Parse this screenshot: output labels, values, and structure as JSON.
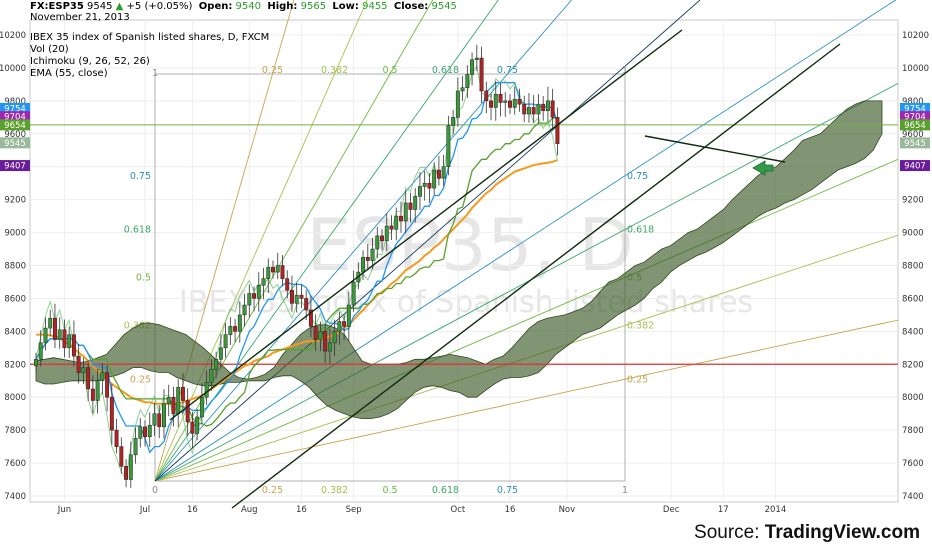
{
  "header": {
    "symbol": "FX:ESP35",
    "last": "9545",
    "change": "+5 (+0.05%)",
    "open_label": "Open:",
    "open": "9540",
    "high_label": "High:",
    "high": "9565",
    "low_label": "Low:",
    "low": "9455",
    "close_label": "Close:",
    "close": "9545",
    "date": "November 21, 2013"
  },
  "legend": {
    "title": "IBEX 35 index of Spanish listed shares, D, FXCM",
    "items": [
      "Vol (20)",
      "Ichimoku (9, 26, 52, 26)",
      "EMA (55, close)"
    ]
  },
  "watermark": {
    "big": "ESP35, D",
    "sub": "IBEX 35 index of Spanish listed shares"
  },
  "source": {
    "prefix": "Source: ",
    "brand": "TradingView.com"
  },
  "colors": {
    "up": "#3a9a3a",
    "down": "#b22222",
    "tenkan": "#2196f3",
    "kijun": "#5aa02c",
    "ema": "#f59a1c",
    "cloud": "#3d5a2a",
    "support": "#e03030",
    "trend": "#0f2a0f"
  },
  "chart_data": {
    "type": "candlestick",
    "ylim": [
      7400,
      10300
    ],
    "y_ticks": [
      7400,
      7600,
      7800,
      8000,
      8200,
      8400,
      8600,
      8800,
      9000,
      9200,
      9400,
      9600,
      9800,
      10000,
      10200
    ],
    "x_labels": [
      {
        "label": "Jun",
        "bar": 6
      },
      {
        "label": "Jul",
        "bar": 23
      },
      {
        "label": "16",
        "bar": 33
      },
      {
        "label": "Aug",
        "bar": 45
      },
      {
        "label": "16",
        "bar": 56
      },
      {
        "label": "Sep",
        "bar": 67
      },
      {
        "label": "Oct",
        "bar": 89
      },
      {
        "label": "16",
        "bar": 100
      },
      {
        "label": "Nov",
        "bar": 112
      },
      {
        "label": "Dec",
        "bar": 134
      },
      {
        "label": "17",
        "bar": 145
      },
      {
        "label": "2014",
        "bar": 156
      }
    ],
    "price_labels": [
      {
        "value": "9754",
        "price": 9754,
        "color": "#2196f3"
      },
      {
        "value": "9704",
        "price": 9704,
        "color": "#9c27b0"
      },
      {
        "value": "9654",
        "price": 9654,
        "color": "#5aa02c"
      },
      {
        "value": "9545",
        "price": 9545,
        "color": "#9ab89a"
      },
      {
        "value": "9407",
        "price": 9407,
        "color": "#6a1b9a"
      }
    ],
    "support_level": 8200,
    "fib_levels": [
      "0",
      "0.25",
      "0.382",
      "0.5",
      "0.618",
      "0.75",
      "1"
    ],
    "closes": [
      8230,
      8330,
      8420,
      8480,
      8350,
      8410,
      8300,
      8380,
      8250,
      8150,
      8180,
      8050,
      7980,
      8100,
      8150,
      8000,
      7800,
      7700,
      7580,
      7500,
      7650,
      7750,
      7820,
      7760,
      7830,
      7900,
      7820,
      7960,
      8000,
      7900,
      8060,
      7980,
      7850,
      7780,
      7880,
      8000,
      8090,
      8170,
      8230,
      8300,
      8380,
      8430,
      8400,
      8500,
      8560,
      8630,
      8600,
      8680,
      8720,
      8790,
      8760,
      8800,
      8720,
      8650,
      8570,
      8620,
      8600,
      8530,
      8430,
      8350,
      8400,
      8280,
      8330,
      8400,
      8460,
      8430,
      8560,
      8700,
      8760,
      8850,
      8830,
      8900,
      8980,
      8950,
      9040,
      9020,
      9100,
      9070,
      9180,
      9140,
      9220,
      9280,
      9300,
      9270,
      9380,
      9330,
      9400,
      9650,
      9700,
      9860,
      9880,
      9960,
      10050,
      10060,
      9860,
      9800,
      9760,
      9840,
      9790,
      9800,
      9760,
      9810,
      9780,
      9720,
      9760,
      9720,
      9780,
      9740,
      9800,
      9700,
      9540
    ],
    "ema55": [
      8380,
      8380,
      8380,
      8375,
      8370,
      8360,
      8340,
      8320,
      8300,
      8270,
      8250,
      8220,
      8190,
      8160,
      8140,
      8110,
      8080,
      8060,
      8040,
      8020,
      8000,
      7990,
      7980,
      7970,
      7970,
      7960,
      7960,
      7960,
      7960,
      7960,
      7960,
      7970,
      7980,
      7990,
      8000,
      8010,
      8030,
      8050,
      8070,
      8090,
      8110,
      8130,
      8150,
      8170,
      8190,
      8200,
      8220,
      8230,
      8240,
      8250,
      8270,
      8280,
      8290,
      8300,
      8310,
      8320,
      8330,
      8340,
      8340,
      8340,
      8350,
      8360,
      8370,
      8380,
      8400,
      8420,
      8440,
      8470,
      8500,
      8530,
      8560,
      8590,
      8620,
      8640,
      8660,
      8690,
      8710,
      8740,
      8770,
      8790,
      8810,
      8830,
      8860,
      8880,
      8910,
      8930,
      8960,
      8990,
      9020,
      9050,
      9080,
      9110,
      9150,
      9180,
      9210,
      9240,
      9260,
      9290,
      9310,
      9330,
      9350,
      9370,
      9380,
      9390,
      9400,
      9410,
      9415,
      9420,
      9425,
      9430,
      9440
    ],
    "cloud_upper": [
      8220,
      8230,
      8240,
      8230,
      8220,
      8210,
      8220,
      8240,
      8260,
      8320,
      8380,
      8420,
      8450,
      8450,
      8440,
      8420,
      8400,
      8380,
      8340,
      8300,
      8250,
      8200,
      8150,
      8120,
      8110,
      8120,
      8140,
      8180,
      8260,
      8320,
      8380,
      8420,
      8440,
      8440,
      8420,
      8380,
      8300,
      8220,
      8200,
      8200,
      8200,
      8200,
      8210,
      8230,
      8230,
      8240,
      8250,
      8260,
      8250,
      8240,
      8220,
      8200,
      8230,
      8250,
      8300,
      8360,
      8420,
      8460,
      8480,
      8490,
      8500,
      8520,
      8540,
      8580,
      8640,
      8700,
      8720,
      8760,
      8800,
      8820,
      8860,
      8900,
      8920,
      8960,
      9000,
      9020,
      9060,
      9100,
      9140,
      9200,
      9250,
      9300,
      9350,
      9380,
      9400,
      9450,
      9500,
      9560,
      9580,
      9600,
      9650,
      9700,
      9750,
      9780,
      9800,
      9800,
      9800
    ],
    "cloud_lower": [
      8100,
      8080,
      8080,
      8090,
      8100,
      8100,
      8100,
      8100,
      8120,
      8130,
      8150,
      8180,
      8180,
      8160,
      8150,
      8150,
      8120,
      8100,
      8080,
      8070,
      8070,
      8080,
      8090,
      8090,
      8100,
      8100,
      8100,
      8120,
      8130,
      8130,
      8100,
      8060,
      8000,
      7950,
      7920,
      7900,
      7880,
      7870,
      7870,
      7880,
      7900,
      7930,
      7980,
      8030,
      8060,
      8070,
      8060,
      8040,
      8030,
      8000,
      8000,
      8040,
      8080,
      8110,
      8120,
      8120,
      8130,
      8150,
      8200,
      8260,
      8300,
      8340,
      8380,
      8400,
      8420,
      8460,
      8500,
      8530,
      8560,
      8600,
      8660,
      8700,
      8760,
      8800,
      8830,
      8860,
      8880,
      8910,
      8940,
      8980,
      9020,
      9060,
      9100,
      9130,
      9150,
      9180,
      9200,
      9230,
      9260,
      9300,
      9340,
      9380,
      9400,
      9420,
      9450,
      9500,
      9600
    ]
  }
}
